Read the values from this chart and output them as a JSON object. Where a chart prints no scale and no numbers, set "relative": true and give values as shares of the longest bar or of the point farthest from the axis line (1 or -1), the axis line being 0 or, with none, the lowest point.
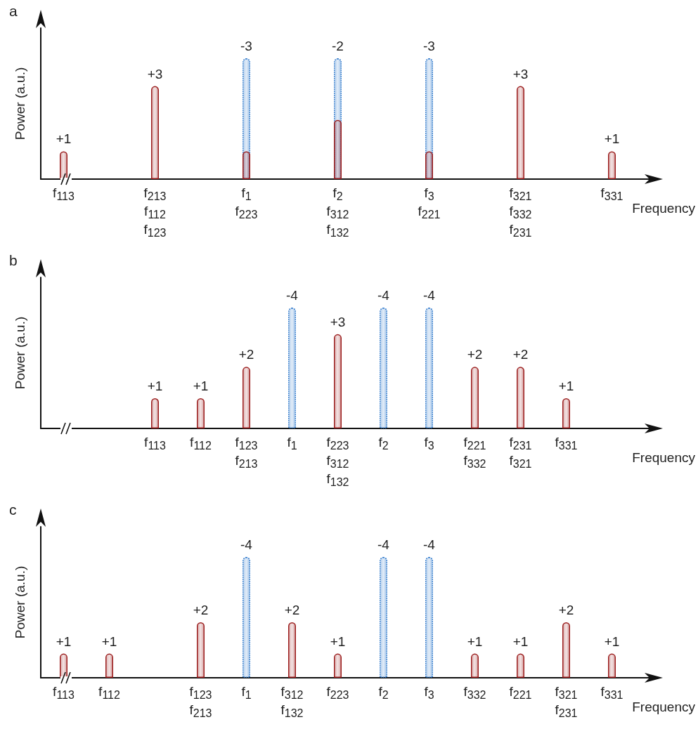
{
  "chart_data": [
    {
      "type": "bar",
      "title": "a",
      "xlabel": "Frequency",
      "ylabel": "Power (a.u.)",
      "relative": true,
      "tick_labels": "x",
      "categories": [
        "f$_{113}$",
        null,
        "f$_{213}$\nf$_{112}$\nf$_{123}$",
        null,
        "f$_{1}$\nf$_{223}$",
        null,
        "f$_{2}$\nf$_{312}$\nf$_{132}$",
        null,
        "f$_{3}$\nf$_{221}$",
        null,
        "f$_{321}$\nf$_{332}$\nf$_{231}$",
        null,
        "f$_{331}$"
      ],
      "series": [
        {
          "color": "#1f6fc8",
          "line_style": "dotted",
          "values": [
            null,
            null,
            null,
            null,
            1,
            null,
            1,
            null,
            1,
            null,
            null,
            null,
            null
          ]
        },
        {
          "color": "#9b1d1d",
          "line_style": "solid",
          "values": [
            0.23,
            null,
            0.77,
            null,
            0.23,
            null,
            0.49,
            null,
            0.23,
            null,
            0.77,
            null,
            0.23
          ]
        }
      ],
      "annotations": [
        {
          "text": "+1",
          "x": "f$_{113}$",
          "y": 0.23
        },
        {
          "text": "+3",
          "x": "f$_{213}$\nf$_{112}$\nf$_{123}$",
          "y": 0.77
        },
        {
          "text": "-3",
          "x": "f$_{1}$\nf$_{223}$",
          "y": 1
        },
        {
          "text": "-2",
          "x": "f$_{2}$\nf$_{312}$\nf$_{132}$",
          "y": 1
        },
        {
          "text": "-3",
          "x": "f$_{3}$\nf$_{221}$",
          "y": 1
        },
        {
          "text": "+3",
          "x": "f$_{321}$\nf$_{332}$\nf$_{231}$",
          "y": 0.77
        },
        {
          "text": "+1",
          "x": "f$_{331}$",
          "y": 0.23
        }
      ]
    },
    {
      "type": "bar",
      "title": "b",
      "xlabel": "Frequency",
      "ylabel": "Power (a.u.)",
      "relative": true,
      "tick_labels": "x",
      "categories": [
        null,
        null,
        "f$_{113}$",
        "f$_{112}$",
        "f$_{123}$\nf$_{213}$",
        "f$_{1}$",
        "f$_{223}$\nf$_{312}$\nf$_{132}$",
        "f$_{2}$",
        "f$_{3}$",
        "f$_{221}$\nf$_{332}$",
        "f$_{231}$\nf$_{321}$",
        "f$_{331}$",
        null
      ],
      "series": [
        {
          "color": "#1f6fc8",
          "line_style": "dotted",
          "values": [
            null,
            null,
            null,
            null,
            null,
            1,
            null,
            1,
            1,
            null,
            null,
            null,
            null
          ]
        },
        {
          "color": "#9b1d1d",
          "line_style": "solid",
          "values": [
            null,
            null,
            0.25,
            0.25,
            0.51,
            null,
            0.78,
            null,
            null,
            0.51,
            0.51,
            0.25,
            null
          ]
        }
      ],
      "annotations": [
        {
          "text": "+1",
          "x": "f$_{113}$",
          "y": 0.25
        },
        {
          "text": "+1",
          "x": "f$_{112}$",
          "y": 0.25
        },
        {
          "text": "+2",
          "x": "f$_{123}$\nf$_{213}$",
          "y": 0.51
        },
        {
          "text": "-4",
          "x": "f$_{1}$",
          "y": 1
        },
        {
          "text": "+3",
          "x": "f$_{223}$\nf$_{312}$\nf$_{132}$",
          "y": 0.78
        },
        {
          "text": "-4",
          "x": "f$_{2}$",
          "y": 1
        },
        {
          "text": "-4",
          "x": "f$_{3}$",
          "y": 1
        },
        {
          "text": "+2",
          "x": "f$_{221}$\nf$_{332}$",
          "y": 0.51
        },
        {
          "text": "+2",
          "x": "f$_{231}$\nf$_{321}$",
          "y": 0.51
        },
        {
          "text": "+1",
          "x": "f$_{331}$",
          "y": 0.25
        }
      ]
    },
    {
      "type": "bar",
      "title": "c",
      "xlabel": "Frequency",
      "ylabel": "Power (a.u.)",
      "relative": true,
      "tick_labels": "x",
      "categories": [
        "f$_{113}$",
        "f$_{112}$",
        null,
        "f$_{123}$\nf$_{213}$",
        "f$_{1}$",
        "f$_{312}$\nf$_{132}$",
        "f$_{223}$",
        "f$_{2}$",
        "f$_{3}$",
        "f$_{332}$",
        "f$_{221}$",
        "f$_{321}$\nf$_{231}$",
        "f$_{331}$"
      ],
      "series": [
        {
          "color": "#1f6fc8",
          "line_style": "dotted",
          "values": [
            null,
            null,
            null,
            null,
            1,
            null,
            null,
            1,
            1,
            null,
            null,
            null,
            null
          ]
        },
        {
          "color": "#9b1d1d",
          "line_style": "solid",
          "values": [
            0.2,
            0.2,
            null,
            0.46,
            null,
            0.46,
            0.2,
            null,
            null,
            0.2,
            0.2,
            0.46,
            0.2
          ]
        }
      ],
      "annotations": [
        {
          "text": "+1",
          "x": "f$_{113}$",
          "y": 0.2
        },
        {
          "text": "+1",
          "x": "f$_{112}$",
          "y": 0.2
        },
        {
          "text": "+2",
          "x": "f$_{123}$\nf$_{213}$",
          "y": 0.46
        },
        {
          "text": "-4",
          "x": "f$_{1}$",
          "y": 1
        },
        {
          "text": "+2",
          "x": "f$_{312}$\nf$_{132}$",
          "y": 0.46
        },
        {
          "text": "+1",
          "x": "f$_{223}$",
          "y": 0.2
        },
        {
          "text": "-4",
          "x": "f$_{2}$",
          "y": 1
        },
        {
          "text": "-4",
          "x": "f$_{3}$",
          "y": 1
        },
        {
          "text": "+1",
          "x": "f$_{332}$",
          "y": 0.2
        },
        {
          "text": "+1",
          "x": "f$_{221}$",
          "y": 0.2
        },
        {
          "text": "+2",
          "x": "f$_{321}$\nf$_{231}$",
          "y": 0.46
        },
        {
          "text": "+1",
          "x": "f$_{331}$",
          "y": 0.2
        }
      ]
    }
  ]
}
